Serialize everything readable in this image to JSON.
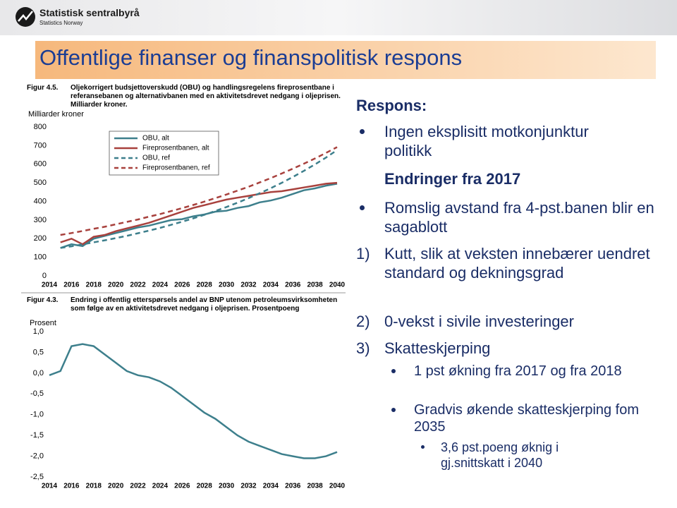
{
  "slide": {
    "title": "Offentlige finanser og finanspolitisk respons",
    "logo": {
      "name": "Statistisk sentralbyrå",
      "subtitle": "Statistics Norway"
    }
  },
  "chart_data": [
    {
      "type": "line",
      "figure_label": "Figur 4.5.",
      "title": "Oljekorrigert budsjettoverskudd (OBU) og handlingsregelens fireprosentbane i referansebanen og alternativbanen med en aktivitetsdrevet nedgang i oljeprisen. Milliarder kroner.",
      "y_label": "Milliarder kroner",
      "x": [
        2015,
        2016,
        2017,
        2018,
        2019,
        2020,
        2021,
        2022,
        2023,
        2024,
        2025,
        2026,
        2027,
        2028,
        2029,
        2030,
        2031,
        2032,
        2033,
        2034,
        2035,
        2036,
        2037,
        2038,
        2039,
        2040
      ],
      "xlim": [
        2014,
        2040
      ],
      "xticks": [
        2014,
        2016,
        2018,
        2020,
        2022,
        2024,
        2026,
        2028,
        2030,
        2032,
        2034,
        2036,
        2038,
        2040
      ],
      "ylim": [
        0,
        800
      ],
      "yticks": [
        0,
        100,
        200,
        300,
        400,
        500,
        600,
        700,
        800
      ],
      "grid": false,
      "legend": "upper left",
      "series": [
        {
          "name": "OBU, alt",
          "color": "#3d7f8c",
          "dashed": false,
          "values": [
            150,
            170,
            160,
            200,
            215,
            230,
            245,
            260,
            270,
            285,
            300,
            305,
            320,
            330,
            345,
            350,
            365,
            375,
            395,
            405,
            420,
            440,
            460,
            470,
            485,
            495
          ]
        },
        {
          "name": "Fireprosentbanen, alt",
          "color": "#a8413d",
          "dashed": false,
          "values": [
            180,
            200,
            170,
            210,
            220,
            240,
            255,
            270,
            285,
            305,
            325,
            345,
            365,
            380,
            395,
            410,
            420,
            430,
            440,
            450,
            455,
            465,
            475,
            485,
            495,
            500
          ]
        },
        {
          "name": "OBU, ref",
          "color": "#3d7f8c",
          "dashed": true,
          "values": [
            150,
            159,
            169,
            180,
            191,
            203,
            215,
            229,
            243,
            258,
            274,
            291,
            309,
            328,
            349,
            370,
            393,
            418,
            444,
            471,
            500,
            531,
            564,
            599,
            636,
            676
          ]
        },
        {
          "name": "Fireprosentbanen, ref",
          "color": "#a8413d",
          "dashed": true,
          "values": [
            220,
            230,
            241,
            253,
            264,
            277,
            290,
            303,
            318,
            332,
            348,
            364,
            381,
            399,
            418,
            437,
            458,
            479,
            502,
            525,
            550,
            576,
            603,
            631,
            661,
            692
          ]
        }
      ]
    },
    {
      "type": "line",
      "figure_label": "Figur 4.3.",
      "title": "Endring i offentlig etterspørsels andel av BNP utenom petroleumsvirksomheten som følge av en aktivitetsdrevet nedgang i oljeprisen. Prosentpoeng",
      "y_label": "Prosent",
      "x": [
        2014,
        2015,
        2016,
        2017,
        2018,
        2019,
        2020,
        2021,
        2022,
        2023,
        2024,
        2025,
        2026,
        2027,
        2028,
        2029,
        2030,
        2031,
        2032,
        2033,
        2034,
        2035,
        2036,
        2037,
        2038,
        2039,
        2040
      ],
      "xlim": [
        2014,
        2040
      ],
      "xticks": [
        2014,
        2016,
        2018,
        2020,
        2022,
        2024,
        2026,
        2028,
        2030,
        2032,
        2034,
        2036,
        2038,
        2040
      ],
      "ylim": [
        -2.5,
        1.0
      ],
      "yticks": [
        {
          "value": -2.5,
          "label": "-2,5"
        },
        {
          "value": -2.0,
          "label": "-2,0"
        },
        {
          "value": -1.5,
          "label": "-1,5"
        },
        {
          "value": -1.0,
          "label": "-1,0"
        },
        {
          "value": -0.5,
          "label": "-0,5"
        },
        {
          "value": 0,
          "label": "0,0"
        },
        {
          "value": 0.5,
          "label": "0,5"
        },
        {
          "value": 1.0,
          "label": "1,0"
        }
      ],
      "grid": false,
      "series": [
        {
          "name": null,
          "color": "#3d7f8c",
          "dashed": false,
          "values": [
            -0.05,
            0.05,
            0.65,
            0.7,
            0.65,
            0.45,
            0.25,
            0.05,
            -0.05,
            -0.1,
            -0.2,
            -0.35,
            -0.55,
            -0.75,
            -0.95,
            -1.1,
            -1.3,
            -1.5,
            -1.65,
            -1.75,
            -1.85,
            -1.95,
            -2.0,
            -2.05,
            -2.05,
            -2.0,
            -1.9
          ]
        }
      ]
    }
  ],
  "text": {
    "heading": "Respons:",
    "point": "Ingen eksplisitt motkonjunktur politikk",
    "subheading": "Endringer fra 2017",
    "change": "Romslig avstand fra 4-pst.banen blir en sagablott",
    "measures": [
      {
        "number": "1)",
        "text": "Kutt, slik at veksten innebærer uendret standard og dekningsgrad"
      },
      {
        "number": "2)",
        "text": "0-vekst i sivile investeringer"
      },
      {
        "number": "3)",
        "text": "Skatteskjerping"
      }
    ],
    "details": [
      "1 pst økning fra 2017 og fra 2018",
      "Gradvis økende skatteskjerping fom 2035"
    ],
    "detail_sub": "3,6 pst.poeng øknig i gj.snittskatt i 2040"
  }
}
